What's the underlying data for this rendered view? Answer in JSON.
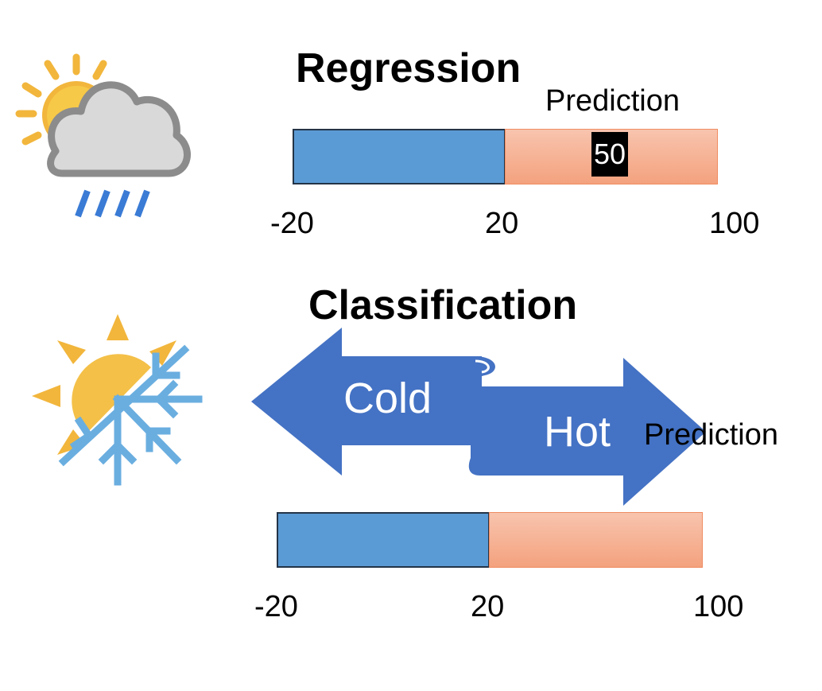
{
  "regression": {
    "title": "Regression",
    "prediction_label": "Prediction",
    "prediction_value": "50",
    "ticks": [
      "-20",
      "20",
      "100"
    ]
  },
  "classification": {
    "title": "Classification",
    "prediction_label": "Prediction",
    "cold_label": "Cold",
    "hot_label": "Hot",
    "ticks": [
      "-20",
      "20",
      "100"
    ]
  },
  "colors": {
    "cold_blue": "#5b9bd5",
    "hot_orange": "#f4a27e",
    "arrow_blue": "#4472c4",
    "sun_yellow": "#f2b63c",
    "snow_blue": "#6aaee0",
    "cloud_gray": "#8c8c8c",
    "rain_blue": "#3a7bd5"
  },
  "icons": {
    "regression_icon": "sun-cloud-rain-icon",
    "classification_icon": "sun-snowflake-icon"
  }
}
